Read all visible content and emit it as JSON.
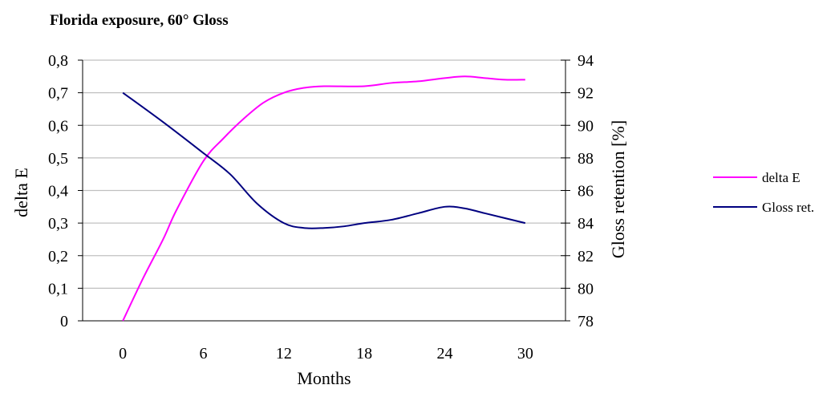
{
  "chart_data": {
    "type": "line",
    "title": "Florida exposure, 60° Gloss",
    "xlabel": "Months",
    "ylabel_left": "delta E",
    "ylabel_right": "Gloss retention [%]",
    "x_ticks": [
      "0",
      "6",
      "12",
      "18",
      "24",
      "30"
    ],
    "x_range": [
      -3,
      33
    ],
    "y_left": {
      "range": [
        0,
        0.8
      ],
      "ticks": [
        "0",
        "0,1",
        "0,2",
        "0,3",
        "0,4",
        "0,5",
        "0,6",
        "0,7",
        "0,8"
      ]
    },
    "y_right": {
      "range": [
        78,
        94
      ],
      "ticks": [
        "78",
        "80",
        "82",
        "84",
        "86",
        "88",
        "90",
        "92",
        "94"
      ]
    },
    "grid": true,
    "legend_position": "right",
    "series": [
      {
        "name": "delta E",
        "axis": "left",
        "color": "#ff00ff",
        "x": [
          0,
          1.5,
          3,
          4,
          6,
          7.5,
          9,
          10.5,
          12,
          13.5,
          15,
          18,
          20,
          22,
          24,
          25.5,
          27,
          28.5,
          30
        ],
        "y": [
          0,
          0.13,
          0.25,
          0.34,
          0.49,
          0.56,
          0.62,
          0.67,
          0.7,
          0.715,
          0.72,
          0.72,
          0.73,
          0.735,
          0.745,
          0.75,
          0.745,
          0.74,
          0.74
        ]
      },
      {
        "name": "Gloss ret.",
        "axis": "right",
        "color": "#000080",
        "x": [
          0,
          3,
          6,
          8,
          10,
          12,
          13.5,
          15,
          16.5,
          18,
          20,
          22,
          24,
          25.5,
          27,
          30
        ],
        "y": [
          92,
          90.2,
          88.3,
          87,
          85.2,
          84,
          83.7,
          83.7,
          83.8,
          84,
          84.2,
          84.6,
          85,
          84.9,
          84.6,
          84
        ]
      }
    ]
  }
}
